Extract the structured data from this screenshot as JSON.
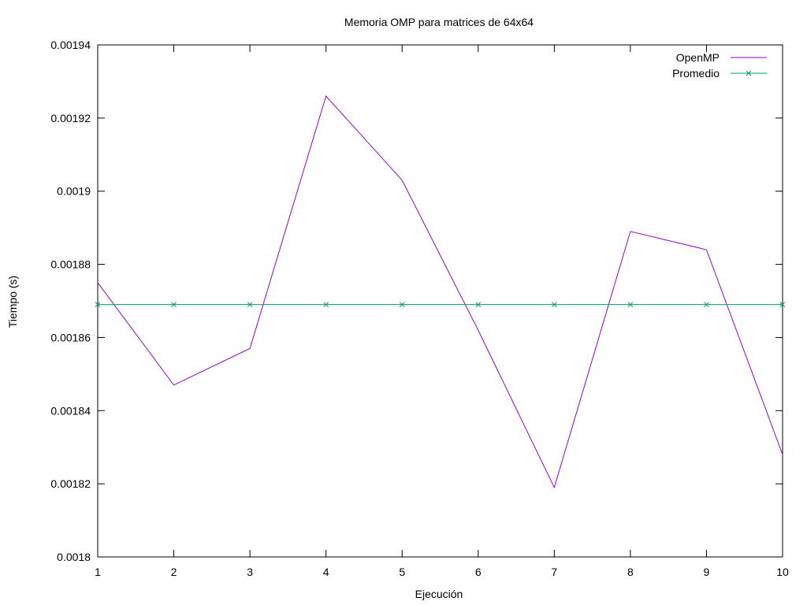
{
  "chart_data": {
    "type": "line",
    "title": "Memoria OMP para matrices de 64x64",
    "xlabel": "Ejecución",
    "ylabel": "Tiempo (s)",
    "xlim": [
      1,
      10
    ],
    "ylim": [
      0.0018,
      0.00194
    ],
    "x_ticks": [
      "1",
      "2",
      "3",
      "4",
      "5",
      "6",
      "7",
      "8",
      "9",
      "10"
    ],
    "y_ticks": [
      "0.0018",
      "0.00182",
      "0.00184",
      "0.00186",
      "0.00188",
      "0.0019",
      "0.00192",
      "0.00194"
    ],
    "x": [
      1,
      2,
      3,
      4,
      5,
      6,
      7,
      8,
      9,
      10
    ],
    "series": [
      {
        "name": "OpenMP",
        "color": "#9400d3",
        "marker": "none",
        "values": [
          0.001875,
          0.001847,
          0.001857,
          0.001926,
          0.001903,
          0.001862,
          0.001819,
          0.001889,
          0.001884,
          0.001828
        ]
      },
      {
        "name": "Promedio",
        "color": "#009e73",
        "marker": "x",
        "values": [
          0.001869,
          0.001869,
          0.001869,
          0.001869,
          0.001869,
          0.001869,
          0.001869,
          0.001869,
          0.001869,
          0.001869
        ]
      }
    ],
    "legend_position": "top-right",
    "grid": false
  }
}
